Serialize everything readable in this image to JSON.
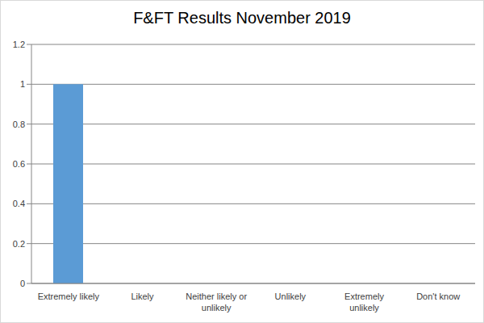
{
  "chart_data": {
    "type": "bar",
    "title": "F&FT Results November 2019",
    "categories": [
      "Extremely likely",
      "Likely",
      "Neither likely or unlikely",
      "Unlikely",
      "Extremely unlikely",
      "Don't know"
    ],
    "values": [
      1,
      0,
      0,
      0,
      0,
      0
    ],
    "color": "#5b9bd5",
    "ylim": [
      0,
      1.2
    ],
    "yticks": [
      0,
      0.2,
      0.4,
      0.6,
      0.8,
      1,
      1.2
    ],
    "grid": true
  }
}
